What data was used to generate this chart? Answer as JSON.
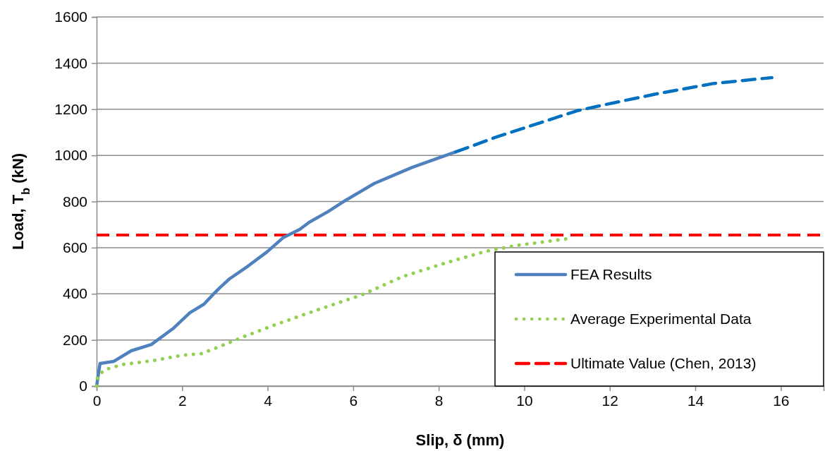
{
  "chart_data": {
    "type": "line",
    "xlabel": "Slip, δ (mm)",
    "ylabel": "Load, T$_{b}$ (kN)",
    "xlim": [
      0,
      17
    ],
    "xticks": [
      0,
      2,
      4,
      6,
      8,
      10,
      12,
      14,
      16
    ],
    "ylim": [
      0,
      1600
    ],
    "yticks": [
      0,
      200,
      400,
      600,
      800,
      1000,
      1200,
      1400,
      1600
    ],
    "grid": "y",
    "legend": "bottom right",
    "series": [
      {
        "name": "FEA Results",
        "color": "#4f81bd",
        "line_style": "solid",
        "x": [
          0,
          0.08,
          0.4,
          0.81,
          1.28,
          1.8,
          2.18,
          2.51,
          2.73,
          2.89,
          3.11,
          3.54,
          3.98,
          4.36,
          4.75,
          4.97,
          5.41,
          5.84,
          6.49,
          7.38,
          8.4
        ],
        "values": [
          0,
          98,
          107,
          153,
          180,
          251,
          318,
          355,
          398,
          428,
          465,
          520,
          581,
          643,
          679,
          710,
          756,
          807,
          878,
          948,
          1015
        ]
      },
      {
        "color": "#0070c0",
        "line_style": "dashed",
        "x": [
          8.4,
          9.31,
          9.97,
          11.23,
          11.89,
          13.16,
          14.44,
          15.79
        ],
        "values": [
          1015,
          1077,
          1117,
          1193,
          1220,
          1269,
          1312,
          1337
        ]
      },
      {
        "name": "Average Experimental Data",
        "color": "#92d050",
        "line_style": "dotted",
        "x": [
          0,
          0.03,
          0.18,
          0.59,
          1.31,
          2.02,
          2.46,
          2.95,
          3.44,
          4.18,
          4.93,
          5.7,
          6.2,
          7.15,
          8.13,
          9.1,
          9.8,
          11.03
        ],
        "values": [
          0,
          43,
          70,
          93,
          110,
          134,
          141,
          177,
          214,
          266,
          315,
          364,
          395,
          474,
          532,
          584,
          609,
          639
        ]
      }
    ],
    "ref_lines": [
      {
        "axis": "y",
        "value": 655,
        "label": "Ultimate Value (Chen, 2013)",
        "color": "#ff0000",
        "line_style": "dashed"
      }
    ]
  }
}
